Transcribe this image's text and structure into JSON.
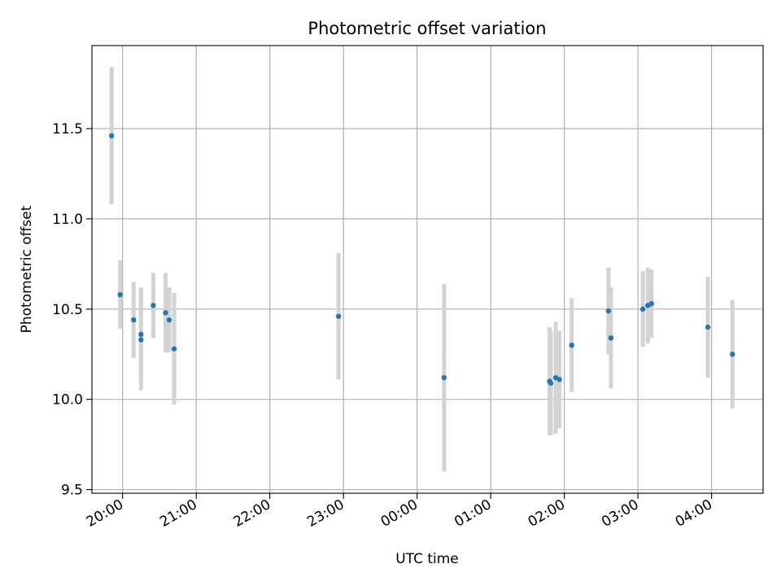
{
  "chart_data": {
    "type": "scatter",
    "title": "Photometric offset variation",
    "xlabel": "UTC time",
    "ylabel": "Photometric offset",
    "grid": true,
    "x_is_time": true,
    "x_day_reference": "20:00 on the first day; hours past 24:00 belong to the next day",
    "xlim": [
      "19:35",
      "04:42"
    ],
    "ylim": [
      9.48,
      11.96
    ],
    "x_ticks": [
      "20:00",
      "21:00",
      "22:00",
      "23:00",
      "00:00",
      "01:00",
      "02:00",
      "03:00",
      "04:00"
    ],
    "y_ticks": [
      "9.5",
      "10.0",
      "10.5",
      "11.0",
      "11.5"
    ],
    "series": [
      {
        "marker_color": "#1f77b4",
        "errorbar_color": "#d3d3d3",
        "points": [
          {
            "t": "19:51",
            "y": 11.46,
            "err": 0.38
          },
          {
            "t": "19:58",
            "y": 10.58,
            "err": 0.19
          },
          {
            "t": "20:09",
            "y": 10.44,
            "err": 0.21
          },
          {
            "t": "20:15",
            "y": 10.36,
            "err": 0.26
          },
          {
            "t": "20:15",
            "y": 10.33,
            "err": 0.28
          },
          {
            "t": "20:25",
            "y": 10.52,
            "err": 0.18
          },
          {
            "t": "20:35",
            "y": 10.48,
            "err": 0.22
          },
          {
            "t": "20:38",
            "y": 10.44,
            "err": 0.18
          },
          {
            "t": "20:42",
            "y": 10.28,
            "err": 0.31
          },
          {
            "t": "22:56",
            "y": 10.46,
            "err": 0.35
          },
          {
            "t": "00:22",
            "y": 10.12,
            "err": 0.52
          },
          {
            "t": "01:48",
            "y": 10.1,
            "err": 0.3
          },
          {
            "t": "01:49",
            "y": 10.09,
            "err": 0.29
          },
          {
            "t": "01:53",
            "y": 10.12,
            "err": 0.31
          },
          {
            "t": "01:56",
            "y": 10.11,
            "err": 0.27
          },
          {
            "t": "02:06",
            "y": 10.3,
            "err": 0.26
          },
          {
            "t": "02:36",
            "y": 10.49,
            "err": 0.24
          },
          {
            "t": "02:38",
            "y": 10.34,
            "err": 0.28
          },
          {
            "t": "03:04",
            "y": 10.5,
            "err": 0.21
          },
          {
            "t": "03:08",
            "y": 10.52,
            "err": 0.21
          },
          {
            "t": "03:11",
            "y": 10.53,
            "err": 0.19
          },
          {
            "t": "03:57",
            "y": 10.4,
            "err": 0.28
          },
          {
            "t": "04:17",
            "y": 10.25,
            "err": 0.3
          }
        ]
      }
    ]
  }
}
